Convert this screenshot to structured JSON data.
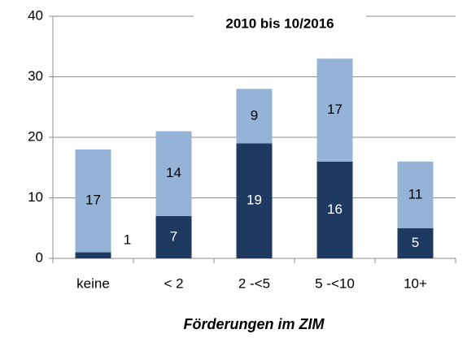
{
  "chart_data": {
    "type": "bar",
    "stacked": true,
    "title": "2010 bis 10/2016",
    "x_label": "Förderungen im ZIM",
    "categories": [
      "keine",
      "< 2",
      "2 -<5",
      "5 -<10",
      "10+"
    ],
    "series": [
      {
        "color": "#1f3a60",
        "values": [
          1,
          7,
          19,
          16,
          5
        ]
      },
      {
        "color": "#95b3d7",
        "values": [
          17,
          14,
          9,
          17,
          11
        ]
      }
    ],
    "ylim": [
      0,
      40
    ],
    "yticks": [
      0,
      10,
      20,
      30,
      40
    ],
    "grid": true
  }
}
